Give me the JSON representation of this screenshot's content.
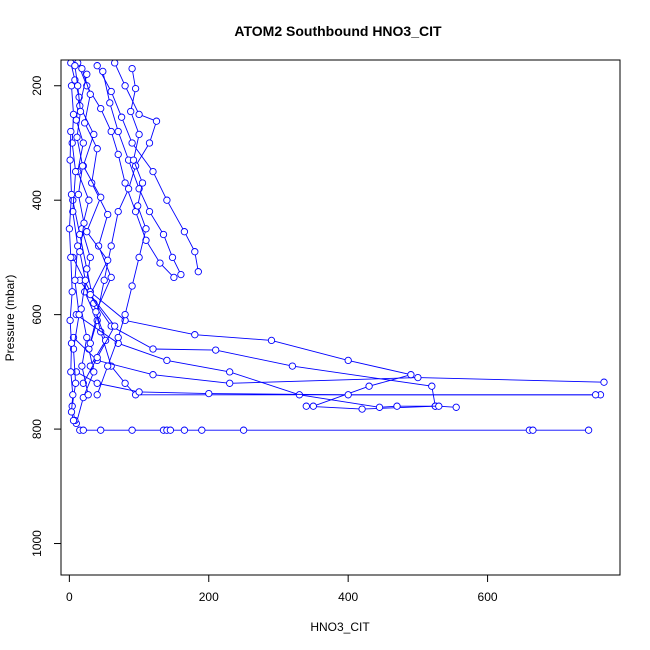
{
  "chart_data": {
    "type": "line",
    "title": "ATOM2 Southbound HNO3_CIT",
    "xlabel": "HNO3_CIT",
    "ylabel": "Pressure (mbar)",
    "xlim": [
      -12,
      790
    ],
    "ylim": [
      1055,
      155
    ],
    "y_reversed": true,
    "x_ticks": [
      0,
      200,
      400,
      600
    ],
    "y_ticks": [
      200,
      400,
      600,
      800,
      1000
    ],
    "grid": false,
    "legend": "none",
    "series_color": "#0000ff",
    "marker": "open-circle",
    "series": [
      {
        "points": [
          [
            2,
            160
          ],
          [
            8,
            190
          ],
          [
            14,
            220
          ],
          [
            10,
            260
          ],
          [
            20,
            300
          ],
          [
            12,
            350
          ],
          [
            28,
            400
          ],
          [
            18,
            450
          ],
          [
            30,
            500
          ],
          [
            22,
            560
          ],
          [
            40,
            610
          ],
          [
            28,
            660
          ],
          [
            35,
            700
          ],
          [
            20,
            745
          ],
          [
            10,
            790
          ]
        ]
      },
      {
        "points": [
          [
            12,
            160
          ],
          [
            25,
            200
          ],
          [
            45,
            240
          ],
          [
            60,
            280
          ],
          [
            70,
            320
          ],
          [
            80,
            370
          ],
          [
            95,
            420
          ],
          [
            110,
            470
          ],
          [
            130,
            510
          ],
          [
            150,
            535
          ]
        ]
      },
      {
        "points": [
          [
            40,
            165
          ],
          [
            60,
            210
          ],
          [
            75,
            255
          ],
          [
            90,
            300
          ],
          [
            120,
            350
          ],
          [
            140,
            400
          ],
          [
            165,
            455
          ],
          [
            180,
            490
          ],
          [
            185,
            525
          ]
        ]
      },
      {
        "points": [
          [
            65,
            160
          ],
          [
            80,
            200
          ],
          [
            100,
            250
          ],
          [
            125,
            262
          ],
          [
            115,
            300
          ],
          [
            95,
            340
          ],
          [
            85,
            380
          ],
          [
            70,
            420
          ],
          [
            60,
            480
          ],
          [
            50,
            540
          ],
          [
            40,
            600
          ],
          [
            30,
            650
          ]
        ]
      },
      {
        "points": [
          [
            5,
            400
          ],
          [
            15,
            460
          ],
          [
            25,
            520
          ],
          [
            35,
            580
          ],
          [
            45,
            630
          ],
          [
            60,
            690
          ],
          [
            80,
            720
          ],
          [
            95,
            740
          ],
          [
            762,
            740
          ]
        ]
      },
      {
        "points": [
          [
            5,
            500
          ],
          [
            30,
            560
          ],
          [
            80,
            610
          ],
          [
            180,
            635
          ],
          [
            290,
            645
          ],
          [
            400,
            680
          ],
          [
            490,
            705
          ],
          [
            430,
            725
          ],
          [
            350,
            760
          ],
          [
            340,
            760
          ],
          [
            420,
            765
          ],
          [
            525,
            760
          ]
        ]
      },
      {
        "points": [
          [
            15,
            540
          ],
          [
            60,
            620
          ],
          [
            120,
            660
          ],
          [
            210,
            662
          ],
          [
            320,
            690
          ],
          [
            520,
            725
          ],
          [
            525,
            760
          ]
        ]
      },
      {
        "points": [
          [
            10,
            600
          ],
          [
            70,
            650
          ],
          [
            140,
            680
          ],
          [
            230,
            700
          ],
          [
            330,
            740
          ],
          [
            445,
            762
          ],
          [
            470,
            760
          ],
          [
            530,
            760
          ],
          [
            555,
            762
          ]
        ]
      },
      {
        "points": [
          [
            6,
            640
          ],
          [
            40,
            680
          ],
          [
            120,
            705
          ],
          [
            230,
            720
          ],
          [
            500,
            710
          ],
          [
            767,
            718
          ]
        ]
      },
      {
        "points": [
          [
            10,
            700
          ],
          [
            40,
            720
          ],
          [
            100,
            735
          ],
          [
            200,
            738
          ],
          [
            400,
            740
          ],
          [
            755,
            740
          ]
        ]
      },
      {
        "points": [
          [
            15,
            802
          ],
          [
            20,
            802
          ],
          [
            45,
            802
          ],
          [
            90,
            802
          ],
          [
            135,
            802
          ],
          [
            140,
            802
          ],
          [
            145,
            802
          ],
          [
            165,
            802
          ],
          [
            190,
            802
          ],
          [
            250,
            802
          ],
          [
            660,
            802
          ],
          [
            665,
            802
          ],
          [
            745,
            802
          ]
        ]
      },
      {
        "points": [
          [
            3,
            200
          ],
          [
            6,
            250
          ],
          [
            4,
            300
          ],
          [
            9,
            350
          ],
          [
            5,
            420
          ],
          [
            12,
            480
          ],
          [
            8,
            540
          ],
          [
            14,
            600
          ],
          [
            6,
            660
          ],
          [
            9,
            720
          ],
          [
            4,
            760
          ],
          [
            8,
            785
          ]
        ]
      },
      {
        "points": [
          [
            18,
            170
          ],
          [
            30,
            215
          ],
          [
            22,
            265
          ],
          [
            40,
            310
          ],
          [
            32,
            370
          ],
          [
            55,
            425
          ],
          [
            42,
            480
          ],
          [
            60,
            535
          ],
          [
            38,
            595
          ],
          [
            52,
            645
          ],
          [
            30,
            690
          ]
        ]
      },
      {
        "points": [
          [
            48,
            175
          ],
          [
            58,
            230
          ],
          [
            70,
            280
          ],
          [
            85,
            330
          ],
          [
            100,
            380
          ],
          [
            115,
            420
          ],
          [
            135,
            460
          ],
          [
            148,
            500
          ],
          [
            160,
            530
          ]
        ]
      },
      {
        "points": [
          [
            25,
            180
          ],
          [
            15,
            235
          ],
          [
            35,
            285
          ],
          [
            20,
            340
          ],
          [
            45,
            395
          ],
          [
            25,
            455
          ],
          [
            55,
            505
          ],
          [
            30,
            565
          ],
          [
            65,
            620
          ],
          [
            40,
            675
          ],
          [
            20,
            720
          ]
        ]
      },
      {
        "points": [
          [
            90,
            170
          ],
          [
            95,
            205
          ],
          [
            88,
            245
          ],
          [
            100,
            285
          ],
          [
            92,
            330
          ],
          [
            105,
            370
          ],
          [
            98,
            410
          ],
          [
            110,
            450
          ],
          [
            100,
            500
          ],
          [
            90,
            550
          ],
          [
            80,
            600
          ],
          [
            70,
            640
          ],
          [
            55,
            690
          ],
          [
            40,
            740
          ]
        ]
      },
      {
        "points": [
          [
            2,
            280
          ],
          [
            1,
            330
          ],
          [
            3,
            390
          ],
          [
            0,
            450
          ],
          [
            2,
            500
          ],
          [
            4,
            560
          ],
          [
            1,
            610
          ],
          [
            3,
            650
          ],
          [
            2,
            700
          ],
          [
            5,
            740
          ],
          [
            3,
            770
          ],
          [
            6,
            785
          ]
        ]
      },
      {
        "points": [
          [
            8,
            165
          ],
          [
            12,
            200
          ],
          [
            16,
            245
          ],
          [
            11,
            290
          ],
          [
            19,
            340
          ],
          [
            13,
            390
          ],
          [
            21,
            440
          ],
          [
            15,
            490
          ],
          [
            23,
            540
          ],
          [
            17,
            590
          ],
          [
            25,
            640
          ],
          [
            18,
            690
          ],
          [
            27,
            740
          ]
        ]
      }
    ]
  }
}
